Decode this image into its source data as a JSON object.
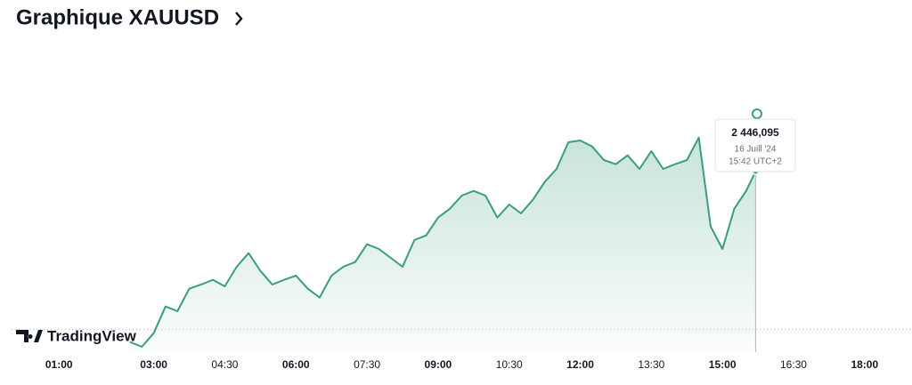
{
  "header": {
    "title": "Graphique XAUUSD"
  },
  "logo": {
    "text": "TradingView"
  },
  "chart_data": {
    "type": "area",
    "color": "#3a9c80",
    "x": [
      "02:30",
      "02:45",
      "03:00",
      "03:15",
      "03:30",
      "03:45",
      "04:00",
      "04:15",
      "04:30",
      "04:45",
      "05:00",
      "05:15",
      "05:30",
      "05:45",
      "06:00",
      "06:15",
      "06:30",
      "06:45",
      "07:00",
      "07:15",
      "07:30",
      "07:45",
      "08:00",
      "08:15",
      "08:30",
      "08:45",
      "09:00",
      "09:15",
      "09:30",
      "09:45",
      "10:00",
      "10:15",
      "10:30",
      "10:45",
      "11:00",
      "11:15",
      "11:30",
      "11:45",
      "12:00",
      "12:15",
      "12:30",
      "12:45",
      "13:00",
      "13:15",
      "13:30",
      "13:45",
      "14:00",
      "14:15",
      "14:30",
      "14:45",
      "15:00",
      "15:15",
      "15:30",
      "15:42"
    ],
    "values": [
      2417.3,
      2416.5,
      2418.8,
      2423.3,
      2422.5,
      2426.3,
      2427.0,
      2427.8,
      2426.7,
      2430.0,
      2432.3,
      2429.3,
      2427.0,
      2427.8,
      2428.5,
      2426.3,
      2424.8,
      2428.5,
      2430.0,
      2430.8,
      2433.8,
      2433.0,
      2431.5,
      2430.0,
      2434.5,
      2435.3,
      2438.3,
      2439.8,
      2442.0,
      2442.8,
      2442.0,
      2438.3,
      2440.5,
      2439.0,
      2441.3,
      2444.3,
      2446.5,
      2451.0,
      2451.3,
      2450.3,
      2448.0,
      2447.3,
      2448.8,
      2446.5,
      2449.5,
      2446.5,
      2447.3,
      2448.0,
      2451.8,
      2436.8,
      2433.0,
      2439.8,
      2442.8,
      2446.095
    ],
    "xlim": [
      "00:00",
      "19:00"
    ],
    "xticks": [
      "01:00",
      "03:00",
      "04:30",
      "06:00",
      "07:30",
      "09:00",
      "10:30",
      "12:00",
      "13:30",
      "15:00",
      "16:30",
      "18:00"
    ],
    "ylim": [
      2415,
      2469
    ],
    "baseline": 2419.4,
    "tooltip": {
      "value": 2446.095,
      "label": "2 446,095",
      "date": "16 Juill '24",
      "time": "15:42 UTC+2"
    }
  }
}
